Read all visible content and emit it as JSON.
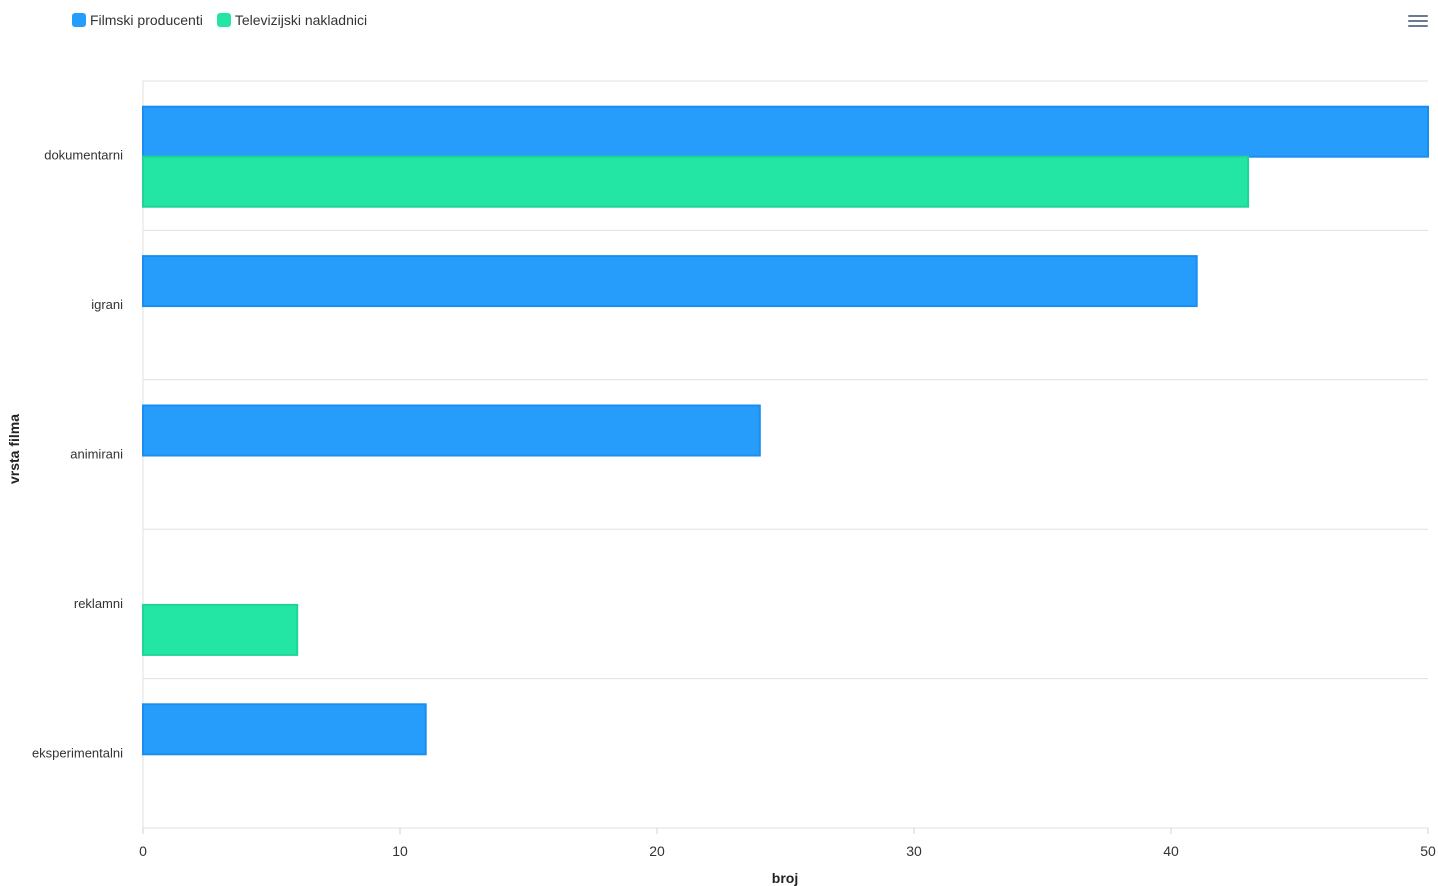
{
  "chart_data": {
    "type": "bar",
    "orientation": "horizontal",
    "categories": [
      "dokumentarni",
      "igrani",
      "animirani",
      "reklamni",
      "eksperimentalni"
    ],
    "series": [
      {
        "name": "Filmski producenti",
        "color": "#269dfb",
        "stroke": "#1a8ef0",
        "values": [
          50,
          41,
          24,
          0,
          11
        ]
      },
      {
        "name": "Televizijski nakladnici",
        "color": "#24e6a4",
        "stroke": "#1fd494",
        "values": [
          43,
          0,
          0,
          6,
          0
        ]
      }
    ],
    "xlabel": "broj",
    "ylabel": "vrsta filma",
    "xlim": [
      0,
      50
    ],
    "xticks": [
      "0",
      "10",
      "20",
      "30",
      "40",
      "50"
    ],
    "legend": "top-left",
    "grid": true
  }
}
